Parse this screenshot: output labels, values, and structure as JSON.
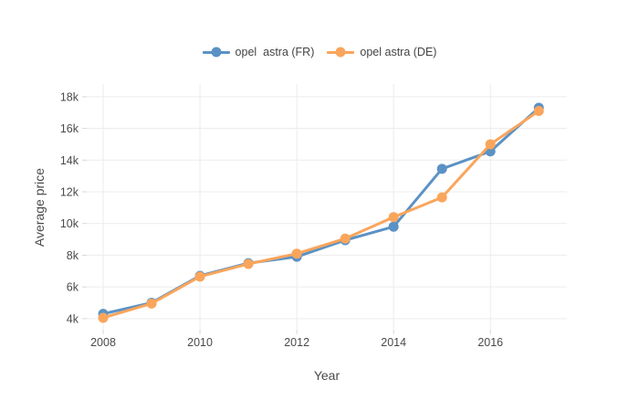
{
  "chart_data": {
    "type": "line",
    "title": "",
    "xlabel": "Year",
    "ylabel": "Average price",
    "x": [
      2008,
      2009,
      2010,
      2011,
      2012,
      2013,
      2014,
      2015,
      2016,
      2017
    ],
    "series": [
      {
        "name": "opel  astra (FR)",
        "color": "#5b92c5",
        "values": [
          4300,
          5000,
          6700,
          7500,
          7900,
          8950,
          9800,
          13450,
          14550,
          17300
        ]
      },
      {
        "name": "opel astra (DE)",
        "color": "#faa55c",
        "values": [
          4050,
          4950,
          6650,
          7450,
          8100,
          9050,
          10400,
          11650,
          15000,
          17100
        ]
      }
    ],
    "xlim": [
      2007.66,
      2017.58
    ],
    "ylim": [
      3300,
      18800
    ],
    "xticks": {
      "values": [
        2008,
        2010,
        2012,
        2014,
        2016
      ],
      "labels": [
        "2008",
        "2010",
        "2012",
        "2014",
        "2016"
      ]
    },
    "yticks": {
      "values": [
        4000,
        6000,
        8000,
        10000,
        12000,
        14000,
        16000,
        18000
      ],
      "labels": [
        "4k",
        "6k",
        "8k",
        "10k",
        "12k",
        "14k",
        "16k",
        "18k"
      ]
    },
    "grid": true,
    "legend": {
      "position": "top-center"
    },
    "style": {
      "background": "#ffffff",
      "grid_color": "#ececec",
      "tick_color": "#d8d8d8",
      "text_color": "#4a4a4a",
      "line_width": 3,
      "marker_radius": 5.5
    }
  }
}
